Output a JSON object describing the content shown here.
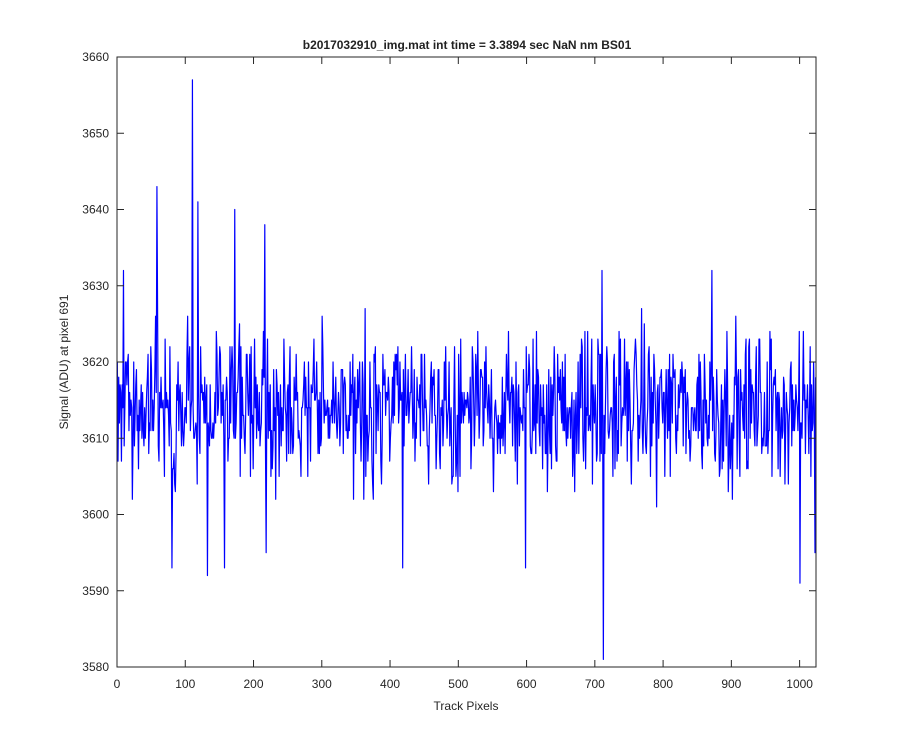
{
  "chart_data": {
    "type": "line",
    "title": "b2017032910_img.mat int time = 3.3894 sec  NaN nm BS01",
    "xlabel": "Track Pixels",
    "ylabel": "Signal (ADU) at pixel 691",
    "xlim": [
      0,
      1024
    ],
    "ylim": [
      3580,
      3660
    ],
    "xticks": [
      "0",
      "100",
      "200",
      "300",
      "400",
      "500",
      "600",
      "700",
      "800",
      "900",
      "1000"
    ],
    "yticks": [
      "3580",
      "3590",
      "3600",
      "3610",
      "3620",
      "3630",
      "3640",
      "3650",
      "3660"
    ],
    "grid": false,
    "legend": "none",
    "series": [
      {
        "color": "#0000ff",
        "points_count": 1024,
        "baseline": 3614,
        "noise_amplitude": 6,
        "highlights": [
          {
            "x": 1,
            "y": 3607
          },
          {
            "x": 9,
            "y": 3632
          },
          {
            "x": 58,
            "y": 3643
          },
          {
            "x": 80,
            "y": 3593
          },
          {
            "x": 110,
            "y": 3657
          },
          {
            "x": 118,
            "y": 3641
          },
          {
            "x": 132,
            "y": 3592
          },
          {
            "x": 157,
            "y": 3593
          },
          {
            "x": 172,
            "y": 3640
          },
          {
            "x": 216,
            "y": 3638
          },
          {
            "x": 218,
            "y": 3595
          },
          {
            "x": 418,
            "y": 3593
          },
          {
            "x": 598,
            "y": 3593
          },
          {
            "x": 710,
            "y": 3632
          },
          {
            "x": 712,
            "y": 3581
          },
          {
            "x": 871,
            "y": 3632
          },
          {
            "x": 1000,
            "y": 3591
          },
          {
            "x": 1022,
            "y": 3595
          }
        ]
      }
    ]
  }
}
